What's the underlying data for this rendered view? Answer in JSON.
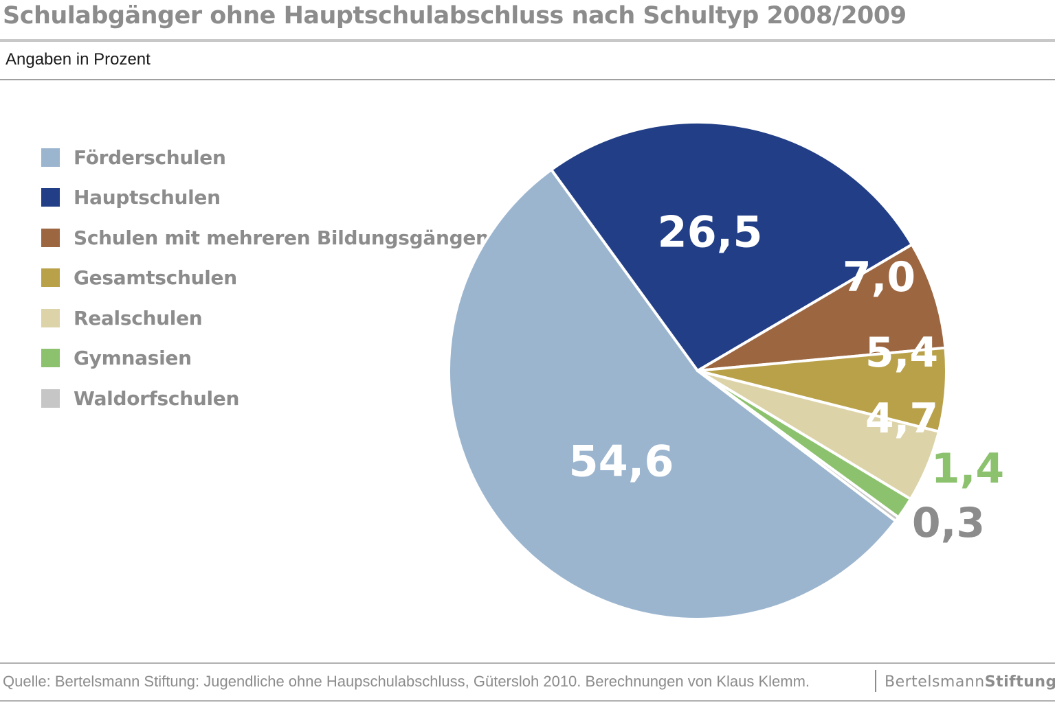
{
  "header": {
    "title": "Schulabgänger ohne Hauptschulabschluss nach Schultyp 2008/2009",
    "subtitle": "Angaben in Prozent"
  },
  "footer": {
    "source": "Quelle: Bertelsmann Stiftung: Jugendliche ohne Haupschulabschluss, Gütersloh 2010. Berechnungen von Klaus Klemm.",
    "logo_light": "Bertelsmann",
    "logo_bold": "Stiftung"
  },
  "chart_data": {
    "type": "pie",
    "title": "Schulabgänger ohne Hauptschulabschluss nach Schultyp 2008/2009",
    "subtitle": "Angaben in Prozent",
    "legend_position": "left",
    "slices": [
      {
        "name": "Förderschulen",
        "value": 54.6,
        "label": "54,6",
        "color": "#9bb5cf",
        "label_color": "#ffffff"
      },
      {
        "name": "Hauptschulen",
        "value": 26.5,
        "label": "26,5",
        "color": "#213e86",
        "label_color": "#ffffff"
      },
      {
        "name": "Schulen mit mehreren Bildungsgängen",
        "value": 7.0,
        "label": "7,0",
        "color": "#9c6640",
        "label_color": "#ffffff"
      },
      {
        "name": "Gesamtschulen",
        "value": 5.4,
        "label": "5,4",
        "color": "#b9a14a",
        "label_color": "#ffffff"
      },
      {
        "name": "Realschulen",
        "value": 4.7,
        "label": "4,7",
        "color": "#ddd3a9",
        "label_color": "#ffffff"
      },
      {
        "name": "Gymnasien",
        "value": 1.4,
        "label": "1,4",
        "color": "#8cc26d",
        "label_color": "#8cc26d"
      },
      {
        "name": "Waldorfschulen",
        "value": 0.3,
        "label": "0,3",
        "color": "#c6c6c6",
        "label_color": "#8c8c8c"
      }
    ]
  }
}
